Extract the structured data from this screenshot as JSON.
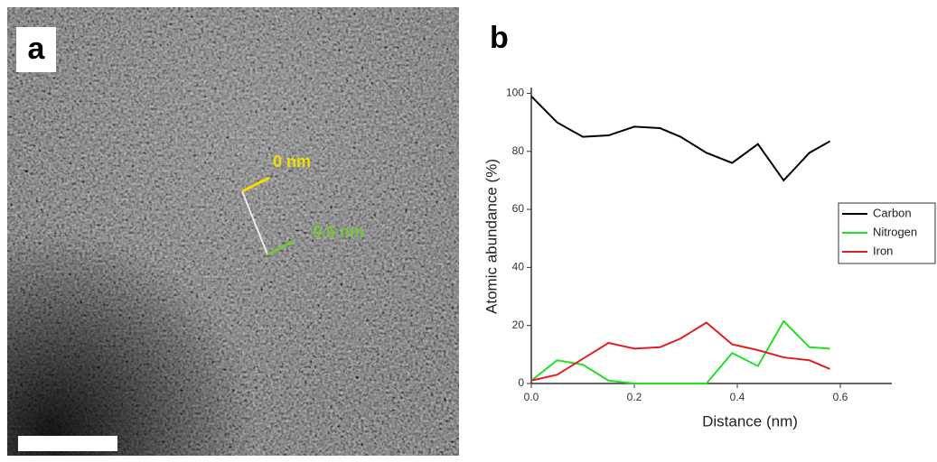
{
  "panels": {
    "a": {
      "label": "a",
      "annotations": [
        "0 nm",
        "0.6 nm"
      ]
    },
    "b": {
      "label": "b"
    }
  },
  "chart_data": {
    "type": "line",
    "xlabel": "Distance (nm)",
    "ylabel": "Atomic abundance (%)",
    "x": [
      0,
      0.05,
      0.1,
      0.15,
      0.2,
      0.25,
      0.29,
      0.34,
      0.39,
      0.44,
      0.49,
      0.54,
      0.58
    ],
    "series": [
      {
        "name": "Carbon",
        "color": "#000000",
        "values": [
          99,
          90,
          85,
          85.5,
          88.5,
          88,
          85,
          79.5,
          76,
          82.5,
          70,
          79.5,
          83.5
        ]
      },
      {
        "name": "Nitrogen",
        "color": "#22e022",
        "values": [
          1,
          8,
          6.5,
          1,
          0,
          0,
          0,
          0,
          10.5,
          6,
          21.5,
          12.5,
          12
        ]
      },
      {
        "name": "Iron",
        "color": "#e02020",
        "values": [
          1,
          3,
          8.5,
          14,
          12,
          12.5,
          15.5,
          21,
          13.5,
          11.5,
          9,
          8,
          5
        ]
      }
    ],
    "xlim": [
      0,
      0.7
    ],
    "ylim": [
      0,
      102
    ],
    "xticks": [
      {
        "value": 0,
        "label": "0.0"
      },
      0.2,
      0.4,
      0.6
    ],
    "yticks": [
      0,
      20,
      40,
      60,
      80,
      100
    ],
    "grid": false,
    "legend": "right"
  }
}
